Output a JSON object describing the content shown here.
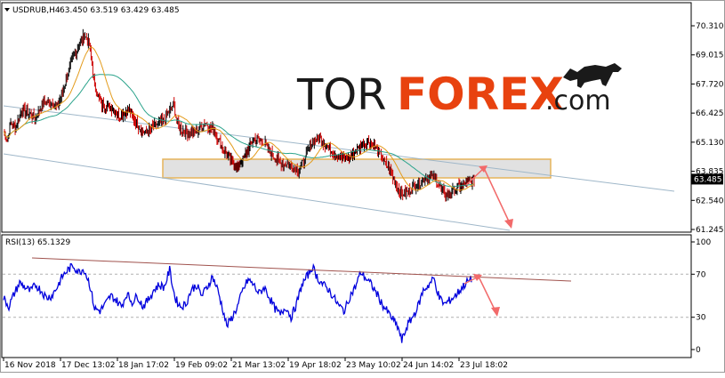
{
  "header": {
    "symbol": "USDRUB,H4",
    "ohlc": "63.450 63.519 63.429 63.485"
  },
  "logo": {
    "part1": "TOR",
    "part2": "FOREX",
    "part3": ".com",
    "color_dark": "#1a1a1a",
    "color_accent": "#e8420f"
  },
  "rsi_header": "RSI(13) 65.1329",
  "colors": {
    "candle_up": "#000000",
    "candle_down": "#cc0000",
    "ma_fast": "#e39b1b",
    "ma_slow": "#2aa38b",
    "channel": "#9fb7c9",
    "arrow": "#f26a6a",
    "rsi_line": "#0000dd",
    "rsi_trend": "#a0524d",
    "zone_fill": "#d9d9d9",
    "zone_border": "#e6b45a"
  },
  "chart_data": [
    {
      "type": "candlestick",
      "series": [
        {
          "name": "USDRUB,H4"
        }
      ],
      "y_ticks": [
        "70.310",
        "69.015",
        "67.720",
        "66.425",
        "65.130",
        "63.835",
        "62.540",
        "61.245"
      ],
      "ylim": [
        61.245,
        70.31
      ],
      "current_price": "63.485",
      "x_ticks": [
        "16 Nov 2018",
        "17 Dec 13:02",
        "18 Jan 17:02",
        "19 Feb 09:02",
        "21 Mar 13:02",
        "19 Apr 18:02",
        "23 May 10:02",
        "24 Jun 14:02",
        "23 Jul 18:02"
      ],
      "price_anchors": [
        {
          "t": 0,
          "v": 65.6
        },
        {
          "t": 4,
          "v": 65.2
        },
        {
          "t": 8,
          "v": 66.0
        },
        {
          "t": 14,
          "v": 65.8
        },
        {
          "t": 20,
          "v": 66.6
        },
        {
          "t": 28,
          "v": 66.4
        },
        {
          "t": 36,
          "v": 66.2
        },
        {
          "t": 44,
          "v": 66.9
        },
        {
          "t": 52,
          "v": 66.9
        },
        {
          "t": 60,
          "v": 66.7
        },
        {
          "t": 66,
          "v": 67.4
        },
        {
          "t": 72,
          "v": 68.2
        },
        {
          "t": 78,
          "v": 68.9
        },
        {
          "t": 84,
          "v": 69.4
        },
        {
          "t": 90,
          "v": 69.9
        },
        {
          "t": 96,
          "v": 69.5
        },
        {
          "t": 102,
          "v": 67.6
        },
        {
          "t": 110,
          "v": 66.8
        },
        {
          "t": 120,
          "v": 66.7
        },
        {
          "t": 130,
          "v": 66.3
        },
        {
          "t": 140,
          "v": 66.6
        },
        {
          "t": 150,
          "v": 65.9
        },
        {
          "t": 160,
          "v": 65.5
        },
        {
          "t": 170,
          "v": 65.9
        },
        {
          "t": 180,
          "v": 66.1
        },
        {
          "t": 190,
          "v": 66.8
        },
        {
          "t": 196,
          "v": 65.8
        },
        {
          "t": 206,
          "v": 65.5
        },
        {
          "t": 216,
          "v": 65.6
        },
        {
          "t": 226,
          "v": 66.0
        },
        {
          "t": 236,
          "v": 65.6
        },
        {
          "t": 246,
          "v": 64.8
        },
        {
          "t": 256,
          "v": 64.2
        },
        {
          "t": 262,
          "v": 64.0
        },
        {
          "t": 270,
          "v": 64.5
        },
        {
          "t": 280,
          "v": 65.3
        },
        {
          "t": 290,
          "v": 65.2
        },
        {
          "t": 300,
          "v": 64.6
        },
        {
          "t": 310,
          "v": 64.2
        },
        {
          "t": 320,
          "v": 64.1
        },
        {
          "t": 330,
          "v": 63.9
        },
        {
          "t": 338,
          "v": 64.4
        },
        {
          "t": 346,
          "v": 65.2
        },
        {
          "t": 354,
          "v": 65.3
        },
        {
          "t": 362,
          "v": 65.0
        },
        {
          "t": 370,
          "v": 64.6
        },
        {
          "t": 380,
          "v": 64.4
        },
        {
          "t": 390,
          "v": 64.5
        },
        {
          "t": 400,
          "v": 65.0
        },
        {
          "t": 408,
          "v": 65.2
        },
        {
          "t": 416,
          "v": 64.9
        },
        {
          "t": 424,
          "v": 64.4
        },
        {
          "t": 432,
          "v": 63.9
        },
        {
          "t": 440,
          "v": 63.2
        },
        {
          "t": 446,
          "v": 62.8
        },
        {
          "t": 452,
          "v": 62.9
        },
        {
          "t": 460,
          "v": 63.2
        },
        {
          "t": 468,
          "v": 63.4
        },
        {
          "t": 476,
          "v": 63.6
        },
        {
          "t": 484,
          "v": 63.5
        },
        {
          "t": 490,
          "v": 63.0
        },
        {
          "t": 496,
          "v": 62.8
        },
        {
          "t": 504,
          "v": 63.0
        },
        {
          "t": 512,
          "v": 63.2
        },
        {
          "t": 520,
          "v": 63.3
        },
        {
          "t": 527,
          "v": 63.485
        }
      ]
    },
    {
      "type": "line",
      "series": [
        {
          "name": "RSI(13)"
        }
      ],
      "y_ticks": [
        "100",
        "70",
        "30",
        "0"
      ],
      "ylim": [
        0,
        100
      ],
      "levels": [
        70,
        30
      ],
      "rsi_anchors": [
        {
          "t": 0,
          "v": 48
        },
        {
          "t": 6,
          "v": 40
        },
        {
          "t": 12,
          "v": 52
        },
        {
          "t": 18,
          "v": 62
        },
        {
          "t": 24,
          "v": 58
        },
        {
          "t": 30,
          "v": 54
        },
        {
          "t": 36,
          "v": 60
        },
        {
          "t": 42,
          "v": 55
        },
        {
          "t": 48,
          "v": 48
        },
        {
          "t": 54,
          "v": 50
        },
        {
          "t": 60,
          "v": 58
        },
        {
          "t": 66,
          "v": 68
        },
        {
          "t": 72,
          "v": 74
        },
        {
          "t": 78,
          "v": 78
        },
        {
          "t": 84,
          "v": 72
        },
        {
          "t": 90,
          "v": 75
        },
        {
          "t": 96,
          "v": 62
        },
        {
          "t": 102,
          "v": 38
        },
        {
          "t": 108,
          "v": 36
        },
        {
          "t": 114,
          "v": 42
        },
        {
          "t": 120,
          "v": 50
        },
        {
          "t": 126,
          "v": 46
        },
        {
          "t": 132,
          "v": 40
        },
        {
          "t": 138,
          "v": 52
        },
        {
          "t": 144,
          "v": 44
        },
        {
          "t": 150,
          "v": 50
        },
        {
          "t": 156,
          "v": 40
        },
        {
          "t": 162,
          "v": 46
        },
        {
          "t": 168,
          "v": 55
        },
        {
          "t": 174,
          "v": 60
        },
        {
          "t": 180,
          "v": 58
        },
        {
          "t": 186,
          "v": 74
        },
        {
          "t": 192,
          "v": 48
        },
        {
          "t": 198,
          "v": 40
        },
        {
          "t": 204,
          "v": 42
        },
        {
          "t": 210,
          "v": 55
        },
        {
          "t": 216,
          "v": 60
        },
        {
          "t": 222,
          "v": 50
        },
        {
          "t": 228,
          "v": 58
        },
        {
          "t": 234,
          "v": 68
        },
        {
          "t": 240,
          "v": 55
        },
        {
          "t": 246,
          "v": 36
        },
        {
          "t": 250,
          "v": 22
        },
        {
          "t": 256,
          "v": 30
        },
        {
          "t": 262,
          "v": 40
        },
        {
          "t": 268,
          "v": 55
        },
        {
          "t": 274,
          "v": 65
        },
        {
          "t": 280,
          "v": 60
        },
        {
          "t": 286,
          "v": 52
        },
        {
          "t": 292,
          "v": 58
        },
        {
          "t": 298,
          "v": 48
        },
        {
          "t": 304,
          "v": 38
        },
        {
          "t": 310,
          "v": 32
        },
        {
          "t": 316,
          "v": 40
        },
        {
          "t": 322,
          "v": 30
        },
        {
          "t": 328,
          "v": 42
        },
        {
          "t": 334,
          "v": 60
        },
        {
          "t": 340,
          "v": 68
        },
        {
          "t": 346,
          "v": 77
        },
        {
          "t": 352,
          "v": 66
        },
        {
          "t": 358,
          "v": 60
        },
        {
          "t": 364,
          "v": 56
        },
        {
          "t": 370,
          "v": 48
        },
        {
          "t": 376,
          "v": 40
        },
        {
          "t": 382,
          "v": 36
        },
        {
          "t": 388,
          "v": 50
        },
        {
          "t": 394,
          "v": 58
        },
        {
          "t": 400,
          "v": 72
        },
        {
          "t": 406,
          "v": 66
        },
        {
          "t": 412,
          "v": 60
        },
        {
          "t": 418,
          "v": 52
        },
        {
          "t": 424,
          "v": 42
        },
        {
          "t": 430,
          "v": 35
        },
        {
          "t": 436,
          "v": 28
        },
        {
          "t": 442,
          "v": 20
        },
        {
          "t": 446,
          "v": 8
        },
        {
          "t": 452,
          "v": 22
        },
        {
          "t": 458,
          "v": 30
        },
        {
          "t": 464,
          "v": 40
        },
        {
          "t": 470,
          "v": 55
        },
        {
          "t": 476,
          "v": 60
        },
        {
          "t": 482,
          "v": 66
        },
        {
          "t": 488,
          "v": 48
        },
        {
          "t": 494,
          "v": 42
        },
        {
          "t": 500,
          "v": 46
        },
        {
          "t": 506,
          "v": 50
        },
        {
          "t": 512,
          "v": 56
        },
        {
          "t": 518,
          "v": 62
        },
        {
          "t": 524,
          "v": 65.13
        }
      ]
    }
  ]
}
